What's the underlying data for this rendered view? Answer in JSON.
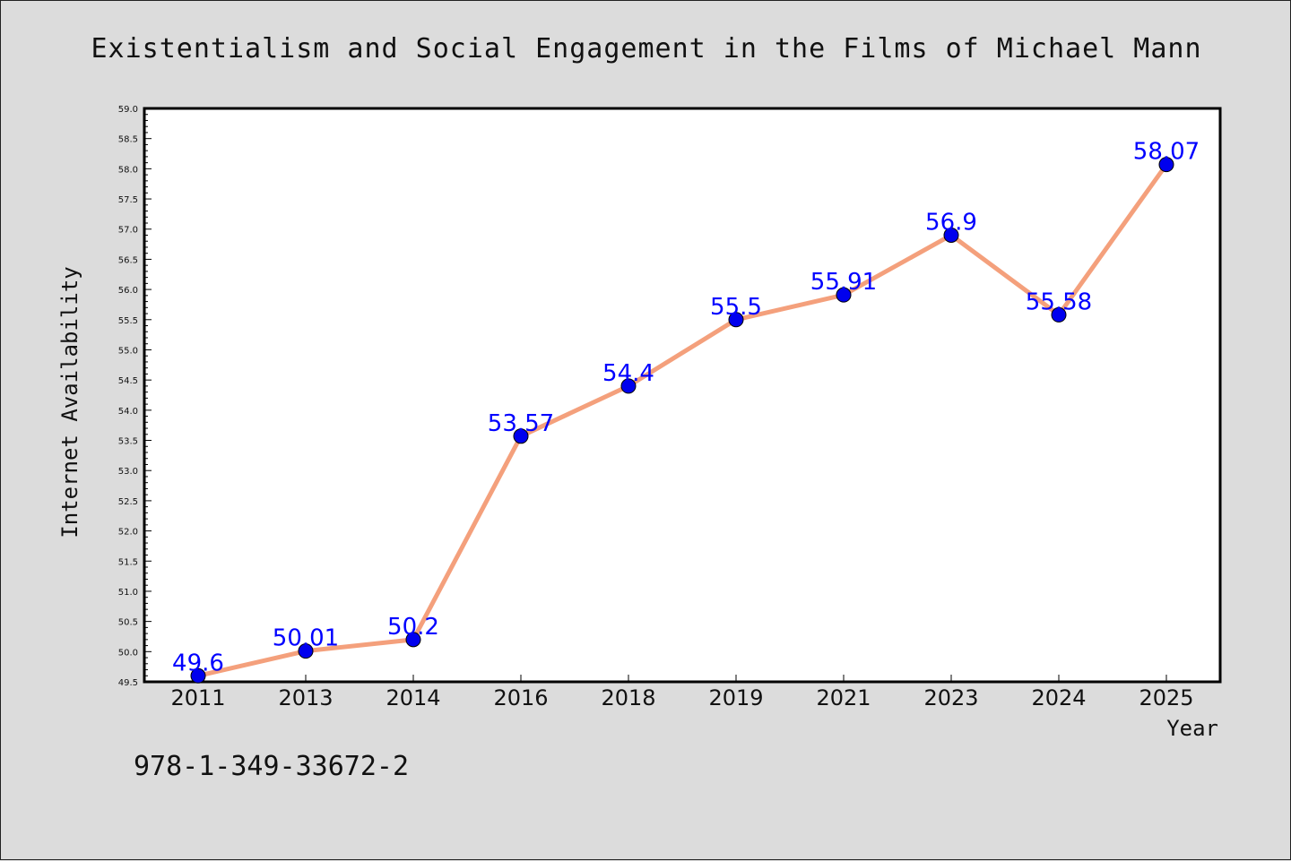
{
  "chart_data": {
    "type": "line",
    "title": "Existentialism and Social Engagement in the Films of Michael Mann",
    "xlabel": "Year",
    "ylabel": "Internet Availability",
    "categories": [
      "2011",
      "2013",
      "2014",
      "2016",
      "2018",
      "2019",
      "2021",
      "2023",
      "2024",
      "2025"
    ],
    "series": [
      {
        "values": [
          49.6,
          50.01,
          50.2,
          53.57,
          54.4,
          55.5,
          55.91,
          56.9,
          55.58,
          58.07
        ],
        "labels": [
          "49.6",
          "50.01",
          "50.2",
          "53.57",
          "54.4",
          "55.5",
          "55.91",
          "56.9",
          "55.58",
          "58.07"
        ]
      }
    ],
    "ylim": [
      49.5,
      59.0
    ],
    "ytick_step": 0.5,
    "ytick_labels": [
      "49.5",
      "50.0",
      "50.5",
      "51.0",
      "51.5",
      "52.0",
      "52.5",
      "53.0",
      "53.5",
      "54.0",
      "54.5",
      "55.0",
      "55.5",
      "56.0",
      "56.5",
      "57.0",
      "57.5",
      "58.0",
      "58.5",
      "59.0"
    ],
    "grid": false,
    "legend": "none",
    "line_color": "#f4a07c",
    "marker_color": "#0000ee",
    "label_color": "#0000ff"
  },
  "footer": {
    "isbn": "978-1-349-33672-2"
  }
}
